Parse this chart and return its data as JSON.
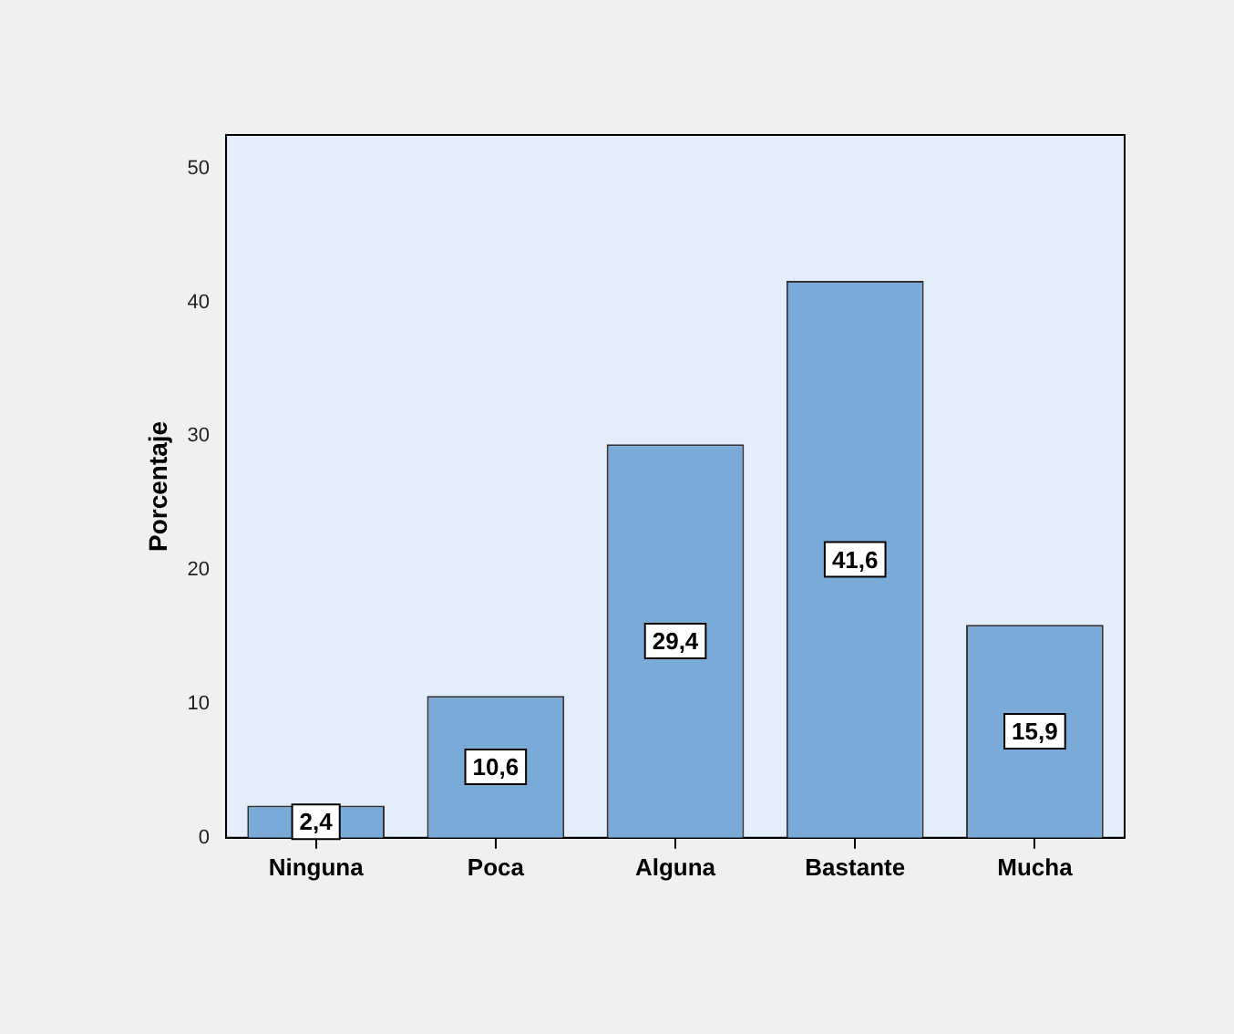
{
  "chart_data": {
    "type": "bar",
    "ylabel": "Porcentaje",
    "categories": [
      "Ninguna",
      "Poca",
      "Alguna",
      "Bastante",
      "Mucha"
    ],
    "values": [
      2.4,
      10.6,
      29.4,
      41.6,
      15.9
    ],
    "value_labels": [
      "2,4",
      "10,6",
      "29,4",
      "41,6",
      "15,9"
    ],
    "color": "#7aaad8",
    "ylim": [
      0,
      52.5
    ],
    "yticks": [
      0,
      10,
      20,
      30,
      40,
      50
    ],
    "grid": false,
    "legend": false
  }
}
